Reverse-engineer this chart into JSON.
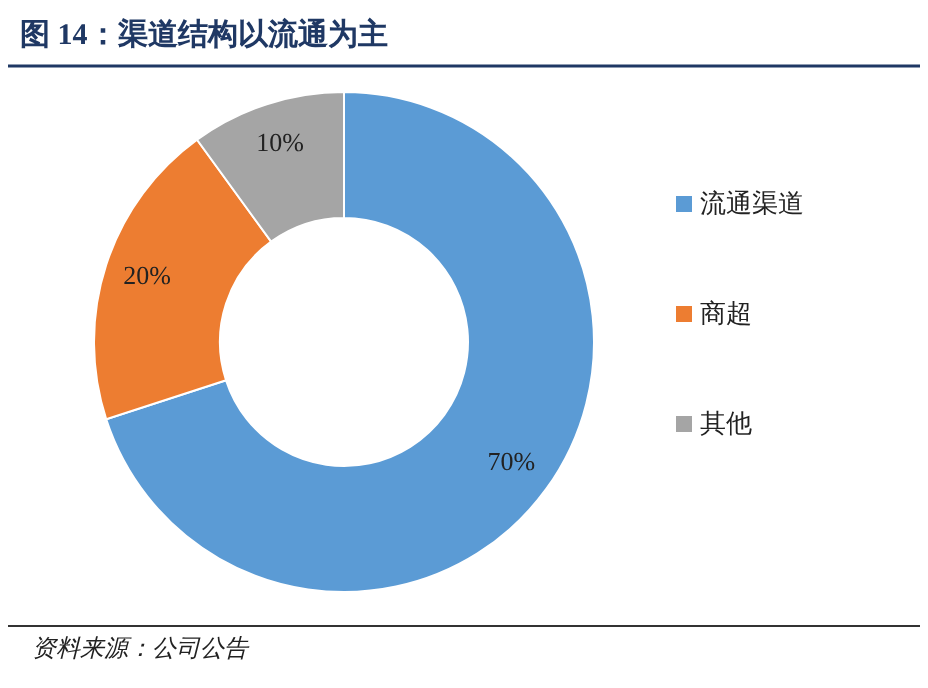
{
  "chart_data": {
    "type": "donut",
    "title": "图 14：渠道结构以流通为主",
    "categories": [
      "流通渠道",
      "商超",
      "其他"
    ],
    "values": [
      70,
      20,
      10
    ],
    "colors": [
      "#5b9bd5",
      "#ed7d31",
      "#a5a5a5"
    ],
    "value_labels": [
      "70%",
      "20%",
      "10%"
    ],
    "legend": "right",
    "annotations": [
      "资料来源：公司公告"
    ]
  }
}
